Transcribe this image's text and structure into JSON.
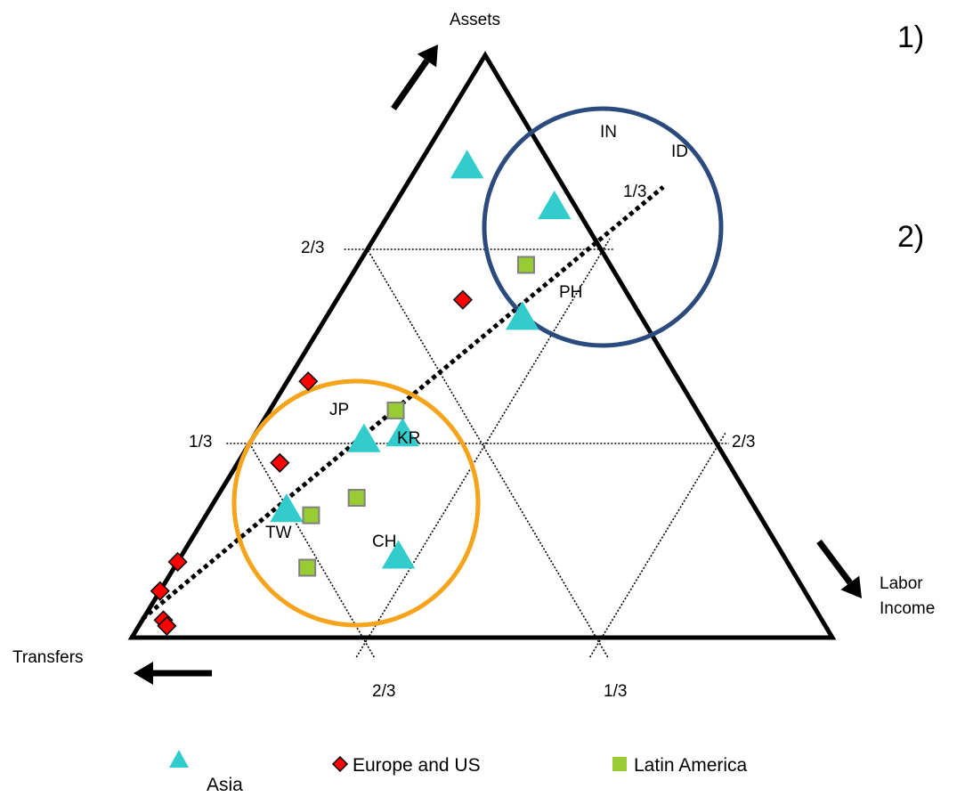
{
  "chart_data": {
    "type": "scatter",
    "subtype": "ternary",
    "axes": {
      "top": "Assets",
      "right": "Labor Income",
      "left": "Transfers"
    },
    "tick_labels": {
      "assets_two_thirds": "2/3",
      "assets_one_third": "1/3",
      "labor_two_thirds": "2/3",
      "transfers_two_thirds": "2/3",
      "transfers_one_third": "1/3",
      "diagonal_one_third": "1/3"
    },
    "legend": [
      {
        "name": "Asia",
        "marker": "triangle",
        "color": "#33cccc"
      },
      {
        "name": "Europe and US",
        "marker": "diamond",
        "color": "#ff0000"
      },
      {
        "name": "Latin America",
        "marker": "square",
        "color": "#99cc33"
      }
    ],
    "legend_position": "bottom",
    "circles": [
      {
        "color": "#2b4a7e"
      },
      {
        "color": "#f5a41b"
      }
    ],
    "series": [
      {
        "name": "Asia",
        "points": [
          {
            "label": "IN",
            "assets": 0.81,
            "transfers": 0.12
          },
          {
            "label": "ID",
            "assets": 0.74,
            "transfers": 0.03
          },
          {
            "label": "PH",
            "assets": 0.55,
            "transfers": 0.17
          },
          {
            "label": "JP",
            "assets": 0.34,
            "transfers": 0.5
          },
          {
            "label": "KR",
            "assets": 0.35,
            "transfers": 0.44
          },
          {
            "label": "TW",
            "assets": 0.22,
            "transfers": 0.67
          },
          {
            "label": "CH",
            "assets": 0.14,
            "transfers": 0.55
          }
        ]
      },
      {
        "name": "Europe and US",
        "points": [
          {
            "assets": 0.58,
            "transfers": 0.24
          },
          {
            "assets": 0.44,
            "transfers": 0.53
          },
          {
            "assets": 0.3,
            "transfers": 0.64
          },
          {
            "assets": 0.13,
            "transfers": 0.87
          },
          {
            "assets": 0.08,
            "transfers": 0.92
          },
          {
            "assets": 0.03,
            "transfers": 0.94
          },
          {
            "assets": 0.02,
            "transfers": 0.94
          }
        ]
      },
      {
        "name": "Latin America",
        "points": [
          {
            "assets": 0.64,
            "transfers": 0.12
          },
          {
            "assets": 0.39,
            "transfers": 0.43
          },
          {
            "assets": 0.24,
            "transfers": 0.56
          },
          {
            "assets": 0.21,
            "transfers": 0.64
          },
          {
            "assets": 0.12,
            "transfers": 0.69
          }
        ]
      }
    ],
    "side_text": [
      "1)",
      "2)"
    ]
  }
}
